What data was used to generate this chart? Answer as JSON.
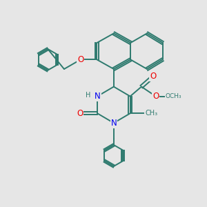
{
  "bg_color": "#e6e6e6",
  "bond_color": "#2d7a6e",
  "atom_colors": {
    "N": "#0000ee",
    "O": "#ee0000",
    "H": "#2d7a6e",
    "C": "#2d7a6e"
  },
  "bond_width": 1.4,
  "font_size_atom": 8.5,
  "font_size_small": 7.0
}
